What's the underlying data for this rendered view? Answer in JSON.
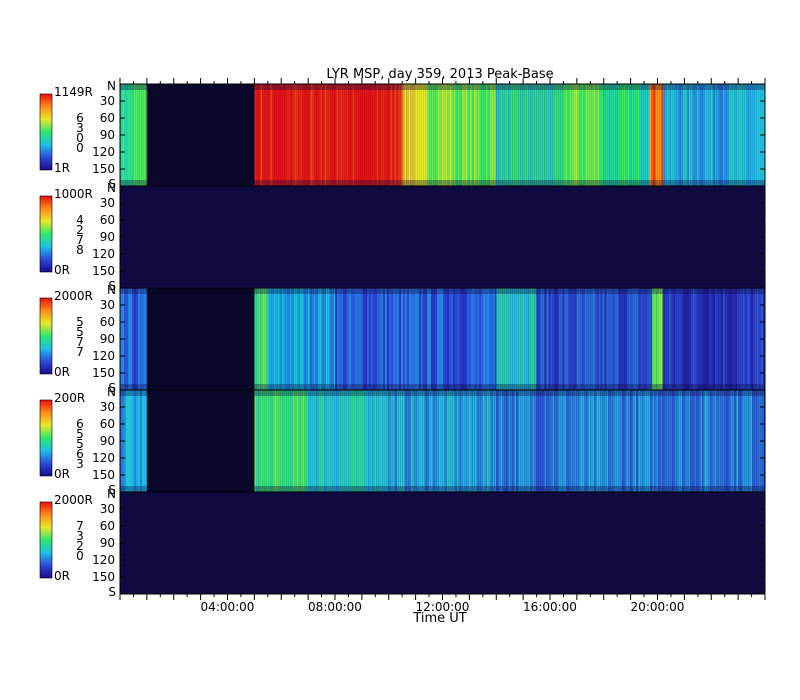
{
  "chart_data": {
    "type": "heatmap",
    "title": "LYR MSP, day 359, 2013 Peak-Base",
    "xlabel": "Time UT",
    "x_ticks": [
      "04:00:00",
      "08:00:00",
      "12:00:00",
      "16:00:00",
      "20:00:00"
    ],
    "x_range_hours": [
      0,
      24
    ],
    "y_range_deg": [
      0,
      180
    ],
    "y_ticks": [
      "30",
      "60",
      "90",
      "120",
      "150"
    ],
    "y_end_labels": {
      "top": "N",
      "bottom": "S"
    },
    "grid": false,
    "colormap": [
      "#1a0a8c",
      "#2c4bd8",
      "#1ec0e8",
      "#2ee86a",
      "#e8e82a",
      "#ff8c1a",
      "#e81010"
    ],
    "background_color": "#0f0a40",
    "panels": [
      {
        "colorbar_max": "1149R",
        "colorbar_min": "1R",
        "wavelength_digits": [
          "6",
          "3",
          "0",
          "0"
        ],
        "data_gaps_hours": [
          [
            1.0,
            5.0
          ]
        ],
        "segments": [
          {
            "start": 0.0,
            "end": 0.5,
            "level": 0.45
          },
          {
            "start": 0.5,
            "end": 1.0,
            "level": 0.5
          },
          {
            "start": 5.0,
            "end": 10.5,
            "level": 1.0
          },
          {
            "start": 10.5,
            "end": 11.0,
            "level": 0.72
          },
          {
            "start": 11.0,
            "end": 12.5,
            "level": 0.6
          },
          {
            "start": 12.5,
            "end": 14.0,
            "level": 0.55
          },
          {
            "start": 14.0,
            "end": 16.5,
            "level": 0.42
          },
          {
            "start": 16.5,
            "end": 18.0,
            "level": 0.55
          },
          {
            "start": 18.0,
            "end": 19.7,
            "level": 0.45
          },
          {
            "start": 19.7,
            "end": 20.2,
            "level": 0.88
          },
          {
            "start": 20.2,
            "end": 24.0,
            "level": 0.32
          }
        ]
      },
      {
        "colorbar_max": "1000R",
        "colorbar_min": "0R",
        "wavelength_digits": [
          "4",
          "2",
          "7",
          "8"
        ],
        "data_gaps_hours": [],
        "segments": []
      },
      {
        "colorbar_max": "2000R",
        "colorbar_min": "0R",
        "wavelength_digits": [
          "5",
          "5",
          "7",
          "7"
        ],
        "data_gaps_hours": [
          [
            1.0,
            5.0
          ]
        ],
        "segments": [
          {
            "start": 0.0,
            "end": 1.0,
            "level": 0.18
          },
          {
            "start": 5.0,
            "end": 5.5,
            "level": 0.5
          },
          {
            "start": 5.5,
            "end": 8.0,
            "level": 0.3
          },
          {
            "start": 8.0,
            "end": 14.0,
            "level": 0.18
          },
          {
            "start": 14.0,
            "end": 15.5,
            "level": 0.4
          },
          {
            "start": 15.5,
            "end": 19.8,
            "level": 0.16
          },
          {
            "start": 19.8,
            "end": 20.2,
            "level": 0.55
          },
          {
            "start": 20.2,
            "end": 24.0,
            "level": 0.12
          }
        ]
      },
      {
        "colorbar_max": "200R",
        "colorbar_min": "0R",
        "wavelength_digits": [
          "6",
          "5",
          "5",
          "6",
          "3"
        ],
        "data_gaps_hours": [
          [
            1.0,
            5.0
          ]
        ],
        "segments": [
          {
            "start": 0.0,
            "end": 1.0,
            "level": 0.3
          },
          {
            "start": 5.0,
            "end": 7.0,
            "level": 0.48
          },
          {
            "start": 7.0,
            "end": 10.0,
            "level": 0.38
          },
          {
            "start": 10.0,
            "end": 14.0,
            "level": 0.3
          },
          {
            "start": 14.0,
            "end": 24.0,
            "level": 0.25
          }
        ]
      },
      {
        "colorbar_max": "2000R",
        "colorbar_min": "0R",
        "wavelength_digits": [
          "7",
          "3",
          "2",
          "0"
        ],
        "data_gaps_hours": [],
        "segments": []
      }
    ]
  }
}
